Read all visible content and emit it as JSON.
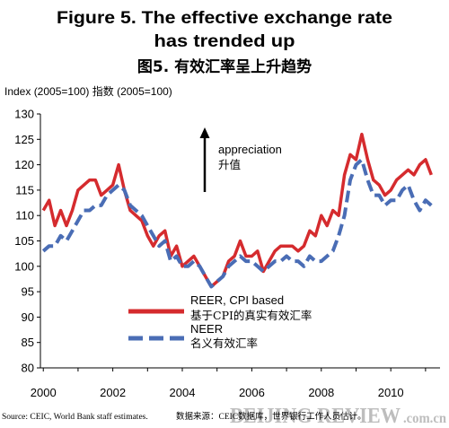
{
  "chart_data": {
    "type": "line",
    "title_lines": [
      "Figure 5. The effective exchange rate",
      "has trended up"
    ],
    "subtitle": "图5. 有效汇率呈上升趋势",
    "xlabel": "",
    "ylabel": "Index (2005=100) 指数 (2005=100)",
    "xlim": [
      "1999-12",
      "2011-06"
    ],
    "ylim": [
      80,
      130
    ],
    "yticks": [
      130,
      125,
      120,
      115,
      110,
      105,
      100,
      95,
      90,
      85,
      80
    ],
    "xtick_labels": [
      "2000",
      "2002",
      "2004",
      "2006",
      "2008",
      "2010"
    ],
    "grid": false,
    "legend": "bottom-center",
    "annotation": {
      "text": "appreciation",
      "text_cn": "升值",
      "icon": "arrow-up-icon"
    },
    "x": [
      "2000-01",
      "2000-03",
      "2000-05",
      "2000-07",
      "2000-09",
      "2000-11",
      "2001-01",
      "2001-03",
      "2001-05",
      "2001-07",
      "2001-09",
      "2001-11",
      "2002-01",
      "2002-03",
      "2002-05",
      "2002-07",
      "2002-09",
      "2002-11",
      "2003-01",
      "2003-03",
      "2003-05",
      "2003-07",
      "2003-09",
      "2003-11",
      "2004-01",
      "2004-03",
      "2004-05",
      "2004-07",
      "2004-09",
      "2004-11",
      "2005-01",
      "2005-03",
      "2005-05",
      "2005-07",
      "2005-09",
      "2005-11",
      "2006-01",
      "2006-03",
      "2006-05",
      "2006-07",
      "2006-09",
      "2006-11",
      "2007-01",
      "2007-03",
      "2007-05",
      "2007-07",
      "2007-09",
      "2007-11",
      "2008-01",
      "2008-03",
      "2008-05",
      "2008-07",
      "2008-09",
      "2008-11",
      "2009-01",
      "2009-03",
      "2009-05",
      "2009-07",
      "2009-09",
      "2009-11",
      "2010-01",
      "2010-03",
      "2010-05",
      "2010-07",
      "2010-09",
      "2010-11",
      "2011-01",
      "2011-03"
    ],
    "series": [
      {
        "name": "REER, CPI based",
        "name_cn": "基于CPI的真实有效汇率",
        "color": "#d52b2e",
        "line_style": "solid",
        "values": [
          111,
          113,
          108,
          111,
          108,
          111,
          115,
          116,
          117,
          117,
          114,
          115,
          116,
          120,
          115,
          111,
          110,
          109,
          106,
          104,
          106,
          107,
          102,
          104,
          100,
          101,
          102,
          100,
          98,
          96,
          97,
          98,
          101,
          102,
          105,
          102,
          102,
          103,
          99,
          101,
          103,
          104,
          104,
          104,
          103,
          104,
          107,
          106,
          110,
          108,
          111,
          110,
          118,
          122,
          121,
          126,
          121,
          117,
          116,
          114,
          115,
          117,
          118,
          119,
          118,
          120,
          121,
          118
        ]
      },
      {
        "name": "NEER",
        "name_cn": "名义有效汇率",
        "color": "#4a6db5",
        "line_style": "dashed",
        "values": [
          103,
          104,
          104,
          106,
          105,
          107,
          109,
          111,
          111,
          112,
          112,
          114,
          115,
          116,
          115,
          112,
          111,
          110,
          108,
          106,
          104,
          105,
          101,
          102,
          100,
          100,
          101,
          100,
          98,
          96,
          97,
          98,
          100,
          101,
          102,
          101,
          101,
          100,
          99,
          100,
          101,
          101,
          102,
          101,
          101,
          100,
          102,
          101,
          101,
          102,
          103,
          106,
          110,
          117,
          120,
          121,
          117,
          114,
          114,
          112,
          113,
          113,
          115,
          116,
          113,
          111,
          113,
          112
        ]
      }
    ]
  },
  "source": {
    "en": "Source: CEIC, World Bank staff estimates.",
    "cn": "数据来源：CEIC数据库，世界银行工作人员估计。"
  },
  "watermark": {
    "main": "BEIJING REVIEW",
    "suffix": ".com.cn"
  }
}
